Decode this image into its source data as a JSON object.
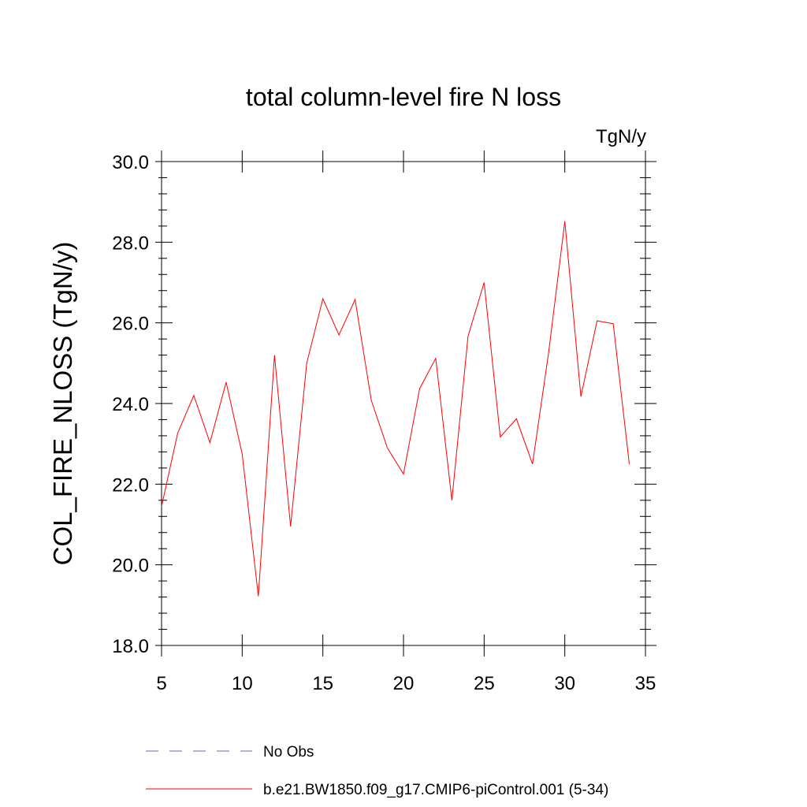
{
  "chart_data": {
    "type": "line",
    "title": "total column-level fire N loss",
    "units": "TgN/y",
    "xlabel": "",
    "ylabel": "COL_FIRE_NLOSS  (TgN/y)",
    "xlim": [
      5,
      35
    ],
    "ylim": [
      18.0,
      30.0
    ],
    "x_ticks": [
      "5",
      "10",
      "15",
      "20",
      "25",
      "30",
      "35"
    ],
    "y_ticks": [
      "18.0",
      "20.0",
      "22.0",
      "24.0",
      "26.0",
      "28.0",
      "30.0"
    ],
    "grid": false,
    "legend_position": "bottom",
    "x": [
      5,
      6,
      7,
      8,
      9,
      10,
      11,
      12,
      13,
      14,
      15,
      16,
      17,
      18,
      19,
      20,
      21,
      22,
      23,
      24,
      25,
      26,
      27,
      28,
      29,
      30,
      31,
      32,
      33,
      34
    ],
    "series": [
      {
        "name": "b.e21.BW1850.f09_g17.CMIP6-piControl.001 (5-34)",
        "color": "#ff0000",
        "style": "solid",
        "values": [
          21.45,
          23.27,
          24.2,
          23.03,
          24.53,
          22.75,
          19.22,
          25.2,
          20.95,
          25.0,
          26.6,
          25.7,
          26.58,
          24.08,
          22.9,
          22.25,
          24.37,
          25.12,
          21.6,
          25.67,
          27.0,
          23.17,
          23.62,
          22.5,
          25.27,
          28.52,
          24.17,
          26.05,
          25.98,
          22.5
        ]
      }
    ],
    "legend": [
      {
        "label": "No Obs",
        "color": "#6666cc",
        "style": "dashed"
      },
      {
        "label": "b.e21.BW1850.f09_g17.CMIP6-piControl.001 (5-34)",
        "color": "#ff0000",
        "style": "solid"
      }
    ]
  }
}
